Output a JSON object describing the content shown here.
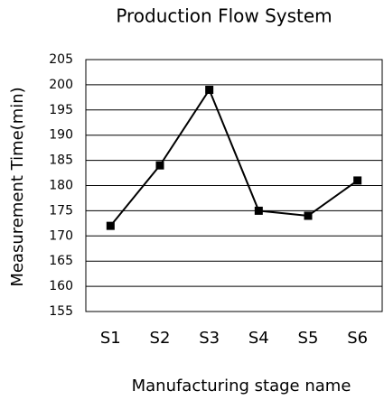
{
  "chart_data": {
    "type": "line",
    "title": "Production Flow System",
    "xlabel": "Manufacturing stage name",
    "ylabel": "Measurement Time(min)",
    "categories": [
      "S1",
      "S2",
      "S3",
      "S4",
      "S5",
      "S6"
    ],
    "values": [
      172,
      184,
      199,
      175,
      174,
      181
    ],
    "color": "#000000",
    "ylim": [
      155,
      205
    ],
    "yticks": [
      155,
      160,
      165,
      170,
      175,
      180,
      185,
      190,
      195,
      200,
      205
    ],
    "grid": true
  }
}
